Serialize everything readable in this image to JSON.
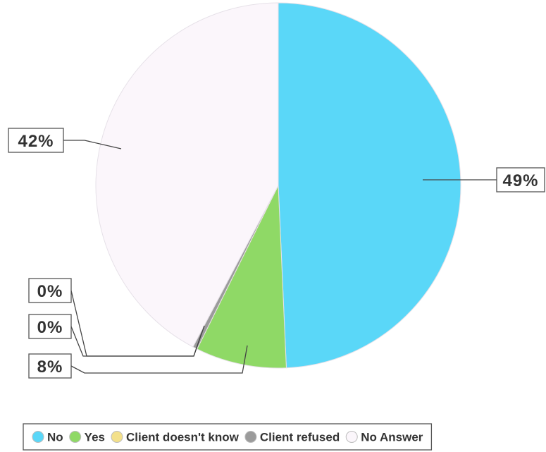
{
  "chart_data": {
    "type": "pie",
    "slices": [
      {
        "name": "No",
        "value": 49,
        "label": "49%",
        "color": "#5ad7f8"
      },
      {
        "name": "Yes",
        "value": 8,
        "label": "8%",
        "color": "#8fd966"
      },
      {
        "name": "Client doesn't know",
        "value": 0,
        "label": "0%",
        "color": "#f3e08a"
      },
      {
        "name": "Client refused",
        "value": 0.4,
        "label": "0%",
        "color": "#9b9b9b"
      },
      {
        "name": "No Answer",
        "value": 42,
        "label": "42%",
        "color": "#fbf6fb"
      }
    ],
    "start_angle_deg": 0,
    "direction": "clockwise",
    "legend_position": "bottom",
    "slice_border_color": "#e6e1e8",
    "leader_line_color": "#444444"
  }
}
